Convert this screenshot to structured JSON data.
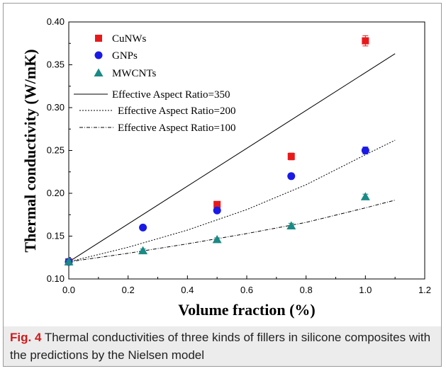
{
  "caption": {
    "label": "Fig. 4",
    "text": " Thermal conductivities of three kinds of fillers in silicone composites with the predictions by the Nielsen model"
  },
  "chart_data": {
    "type": "scatter",
    "xlabel": "Volume fraction (%)",
    "ylabel": "Thermal conductivity (W/mK)",
    "xlim": [
      0.0,
      1.2
    ],
    "ylim": [
      0.1,
      0.4
    ],
    "xticks": [
      "0.0",
      "0.2",
      "0.4",
      "0.6",
      "0.8",
      "1.0",
      "1.2"
    ],
    "yticks": [
      "0.10",
      "0.15",
      "0.20",
      "0.25",
      "0.30",
      "0.35",
      "0.40"
    ],
    "grid": false,
    "legend_position": "top-left",
    "series": [
      {
        "name": "CuNWs",
        "marker": "square",
        "color": "#e8191b",
        "points": [
          [
            0.0,
            0.12
          ],
          [
            0.5,
            0.187
          ],
          [
            0.75,
            0.243
          ],
          [
            1.0,
            0.378
          ]
        ],
        "errors": [
          0.002,
          0.002,
          0.004,
          0.006
        ]
      },
      {
        "name": "GNPs",
        "marker": "circle",
        "color": "#1a1ae6",
        "points": [
          [
            0.0,
            0.12
          ],
          [
            0.25,
            0.16
          ],
          [
            0.5,
            0.18
          ],
          [
            0.75,
            0.22
          ],
          [
            1.0,
            0.25
          ]
        ],
        "errors": [
          0.002,
          0.002,
          0.002,
          0.003,
          0.004
        ]
      },
      {
        "name": "MWCNTs",
        "marker": "triangle",
        "color": "#1a8a86",
        "points": [
          [
            0.0,
            0.12
          ],
          [
            0.25,
            0.133
          ],
          [
            0.5,
            0.146
          ],
          [
            0.75,
            0.162
          ],
          [
            1.0,
            0.196
          ]
        ],
        "errors": [
          0.002,
          0.002,
          0.002,
          0.003,
          0.003
        ]
      }
    ],
    "lines": [
      {
        "name": "Effective Aspect Ratio=350",
        "style": "solid",
        "points": [
          [
            0.0,
            0.12
          ],
          [
            1.1,
            0.363
          ]
        ]
      },
      {
        "name": "Effective Aspect Ratio=200",
        "style": "dotted",
        "points": [
          [
            0.0,
            0.12
          ],
          [
            0.2,
            0.137
          ],
          [
            0.4,
            0.157
          ],
          [
            0.6,
            0.181
          ],
          [
            0.8,
            0.21
          ],
          [
            1.0,
            0.245
          ],
          [
            1.1,
            0.262
          ]
        ]
      },
      {
        "name": "Effective Aspect Ratio=100",
        "style": "dashdot",
        "points": [
          [
            0.0,
            0.12
          ],
          [
            0.2,
            0.13
          ],
          [
            0.4,
            0.141
          ],
          [
            0.6,
            0.153
          ],
          [
            0.8,
            0.166
          ],
          [
            1.0,
            0.183
          ],
          [
            1.1,
            0.192
          ]
        ]
      }
    ]
  }
}
